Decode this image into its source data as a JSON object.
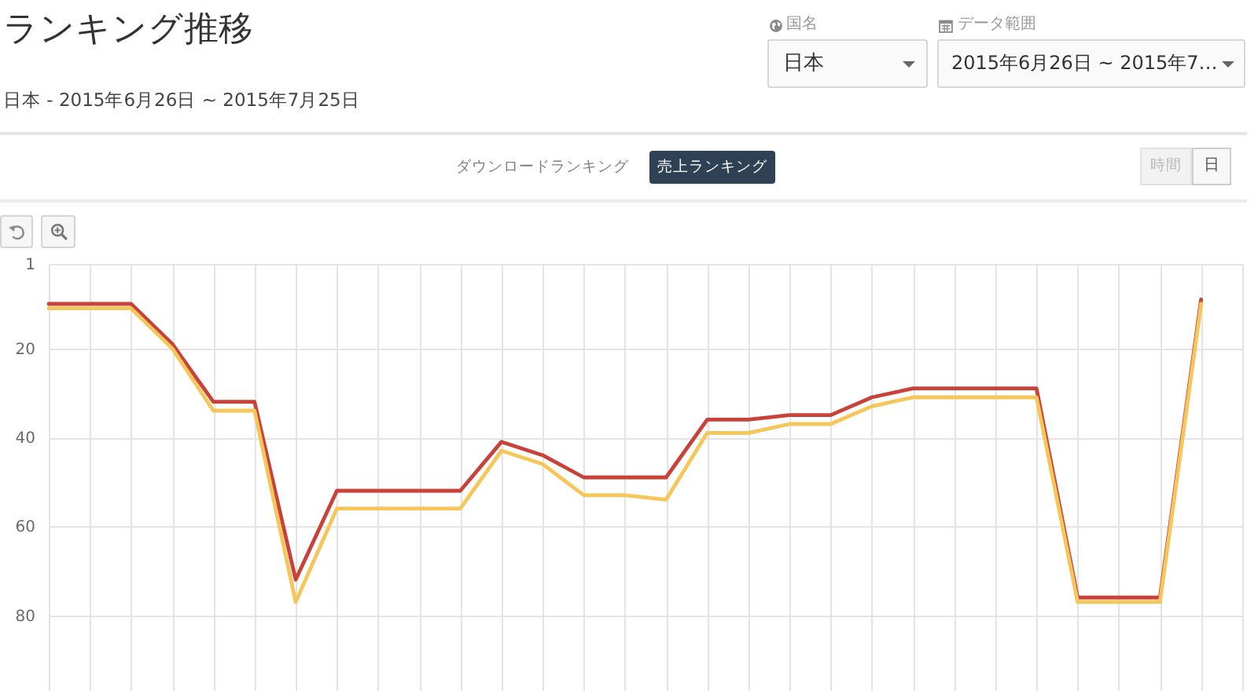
{
  "chart_data": {
    "type": "line",
    "title": "ランキング推移",
    "subtitle": "日本 - 2015年6月26日 ~ 2015年7月25日",
    "categories": [
      null,
      null,
      null,
      null,
      null,
      null,
      null,
      null,
      null,
      null,
      null,
      null,
      null,
      null,
      null,
      null,
      null,
      null,
      null,
      null,
      null,
      null,
      null,
      null,
      null,
      null,
      null,
      null,
      null,
      null
    ],
    "series": [
      {
        "color": "#c8423a",
        "values": [
          10,
          10,
          10,
          19,
          32,
          32,
          72,
          52,
          52,
          52,
          52,
          41,
          44,
          49,
          49,
          49,
          36,
          36,
          35,
          35,
          31,
          29,
          29,
          29,
          29,
          76,
          76,
          76,
          9,
          null
        ]
      },
      {
        "color": "#f5c659",
        "values": [
          11,
          11,
          11,
          20,
          34,
          34,
          77,
          56,
          56,
          56,
          56,
          43,
          46,
          53,
          53,
          54,
          39,
          39,
          37,
          37,
          33,
          31,
          31,
          31,
          31,
          77,
          77,
          77,
          10,
          null
        ]
      }
    ],
    "ylim": [
      97,
      1
    ],
    "yticks": [
      1,
      20,
      40,
      60,
      80
    ],
    "grid": true,
    "tick_labels": "y",
    "annotations": [
      "国名",
      "日本",
      "データ範囲",
      "2015年6月26日 ~ 2015年7…",
      "ダウンロードランキング",
      "売上ランキング",
      "時間",
      "日"
    ]
  }
}
